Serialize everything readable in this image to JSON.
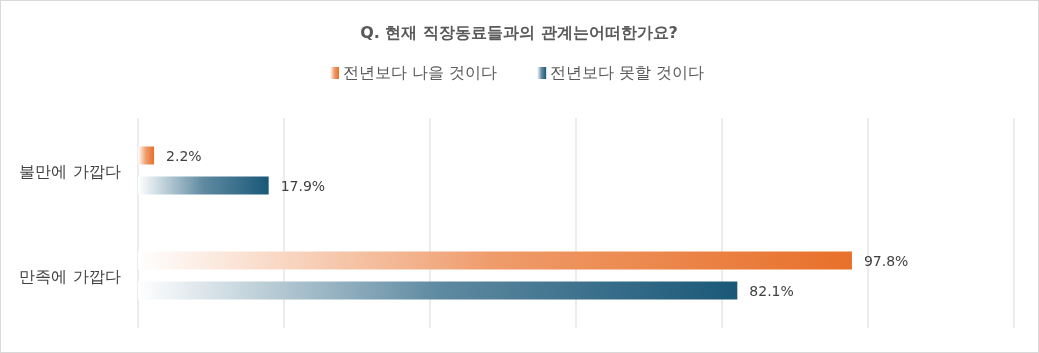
{
  "chart_data": {
    "type": "bar",
    "orientation": "horizontal",
    "title": "Q. 현재 직장동료들과의 관계는어떠한가요?",
    "categories": [
      "불만에 가깝다",
      "만족에 가깝다"
    ],
    "series": [
      {
        "name": "전년보다 나을 것이다",
        "color": "#e8702a",
        "values": [
          2.2,
          97.8
        ],
        "value_labels": [
          "2.2%",
          "97.8%"
        ]
      },
      {
        "name": "전년보다 못할 것이다",
        "color": "#1a5878",
        "values": [
          17.9,
          82.1
        ],
        "value_labels": [
          "17.9%",
          "82.1%"
        ]
      }
    ],
    "xlim": [
      0,
      120
    ],
    "xticks": [
      {
        "value": 0,
        "label": null
      },
      {
        "value": 20,
        "label": null
      },
      {
        "value": 40,
        "label": null
      },
      {
        "value": 60,
        "label": null
      },
      {
        "value": 80,
        "label": null
      },
      {
        "value": 100,
        "label": null
      },
      {
        "value": 120,
        "label": null
      }
    ],
    "grid": "x",
    "legend": "top"
  }
}
